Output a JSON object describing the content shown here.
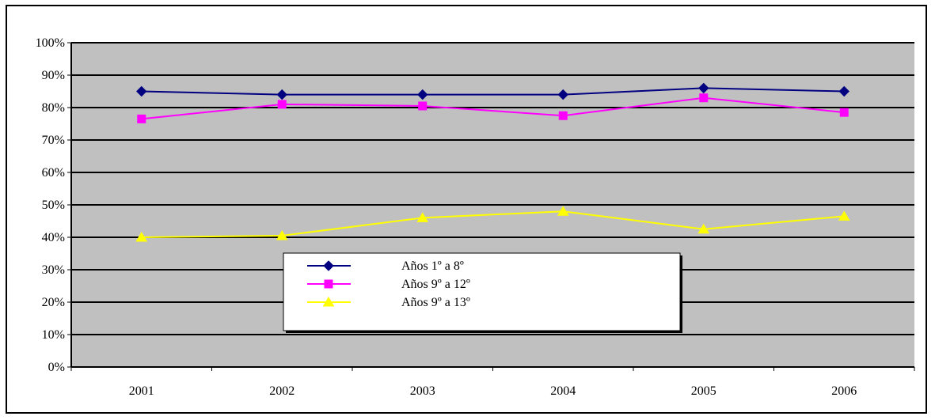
{
  "chart_data": {
    "type": "line",
    "categories": [
      "2001",
      "2002",
      "2003",
      "2004",
      "2005",
      "2006"
    ],
    "y_ticks": [
      "0%",
      "10%",
      "20%",
      "30%",
      "40%",
      "50%",
      "60%",
      "70%",
      "80%",
      "90%",
      "100%"
    ],
    "ylim": [
      0,
      100
    ],
    "grid": true,
    "plot_background": "#c0c0c0",
    "legend_position": "center-bottom",
    "series": [
      {
        "name": "Años 1º a 8º",
        "values": [
          85,
          84,
          84,
          84,
          86,
          85
        ],
        "color": "#000080",
        "marker": "diamond"
      },
      {
        "name": "Años 9º a 12º",
        "values": [
          76.5,
          81,
          80.5,
          77.5,
          83,
          78.5
        ],
        "color": "#ff00ff",
        "marker": "square"
      },
      {
        "name": "Años 9º a 13º",
        "values": [
          40,
          40.5,
          46,
          48,
          42.5,
          46.5
        ],
        "color": "#ffff00",
        "marker": "triangle"
      }
    ],
    "title": "",
    "xlabel": "",
    "ylabel": ""
  }
}
